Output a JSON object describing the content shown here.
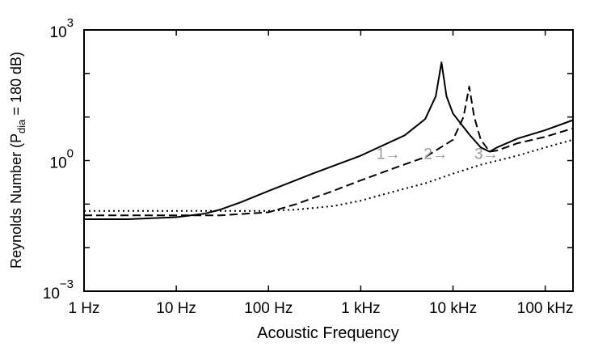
{
  "chart_data": {
    "type": "line",
    "x_scale": "log",
    "y_scale": "log",
    "xlim": [
      1,
      200000
    ],
    "ylim": [
      0.001,
      1000
    ],
    "grid": false,
    "xlabel": "Acoustic Frequency",
    "ylabel": {
      "prefix": "Reynolds Number  (P",
      "subscript": "dia",
      "suffix": " = 180 dB)"
    },
    "x_ticks": [
      {
        "value": 1,
        "label": "1 Hz"
      },
      {
        "value": 10,
        "label": "10 Hz"
      },
      {
        "value": 100,
        "label": "100 Hz"
      },
      {
        "value": 1000,
        "label": "1 kHz"
      },
      {
        "value": 10000,
        "label": "10 kHz"
      },
      {
        "value": 100000,
        "label": "100 kHz"
      }
    ],
    "y_ticks": [
      {
        "value": 0.001,
        "base": "10",
        "exp": "−3"
      },
      {
        "value": 1,
        "base": "10",
        "exp": "0"
      },
      {
        "value": 1000,
        "base": "10",
        "exp": "3"
      }
    ],
    "series": [
      {
        "label": "1→",
        "label_at": [
          2000,
          1.05
        ],
        "style": "solid",
        "x": [
          1,
          3,
          10,
          20,
          30,
          50,
          100,
          300,
          1000,
          3000,
          5000,
          6500,
          7500,
          8500,
          10000,
          15000,
          20000,
          25000,
          30000,
          50000,
          100000,
          200000
        ],
        "y": [
          0.045,
          0.045,
          0.05,
          0.06,
          0.075,
          0.11,
          0.2,
          0.5,
          1.3,
          3.8,
          9,
          30,
          180,
          30,
          12,
          4,
          2,
          1.6,
          2.0,
          3.2,
          5,
          8.5
        ]
      },
      {
        "label": "2→",
        "label_at": [
          6500,
          1.05
        ],
        "style": "dashed",
        "x": [
          1,
          10,
          30,
          100,
          200,
          500,
          1000,
          2000,
          5000,
          10000,
          13000,
          15000,
          17000,
          20000,
          25000,
          30000,
          50000,
          100000,
          200000
        ],
        "y": [
          0.055,
          0.055,
          0.055,
          0.065,
          0.1,
          0.2,
          0.35,
          0.6,
          1.2,
          3,
          10,
          50,
          10,
          3,
          1.6,
          1.7,
          2.5,
          3.5,
          5.5
        ]
      },
      {
        "label": "3→",
        "label_at": [
          23000,
          1.05
        ],
        "style": "dotted",
        "x": [
          1,
          10,
          100,
          200,
          500,
          1000,
          2000,
          5000,
          10000,
          20000,
          50000,
          100000,
          200000
        ],
        "y": [
          0.07,
          0.07,
          0.07,
          0.075,
          0.09,
          0.12,
          0.18,
          0.3,
          0.5,
          0.8,
          1.3,
          2,
          3
        ]
      }
    ]
  }
}
